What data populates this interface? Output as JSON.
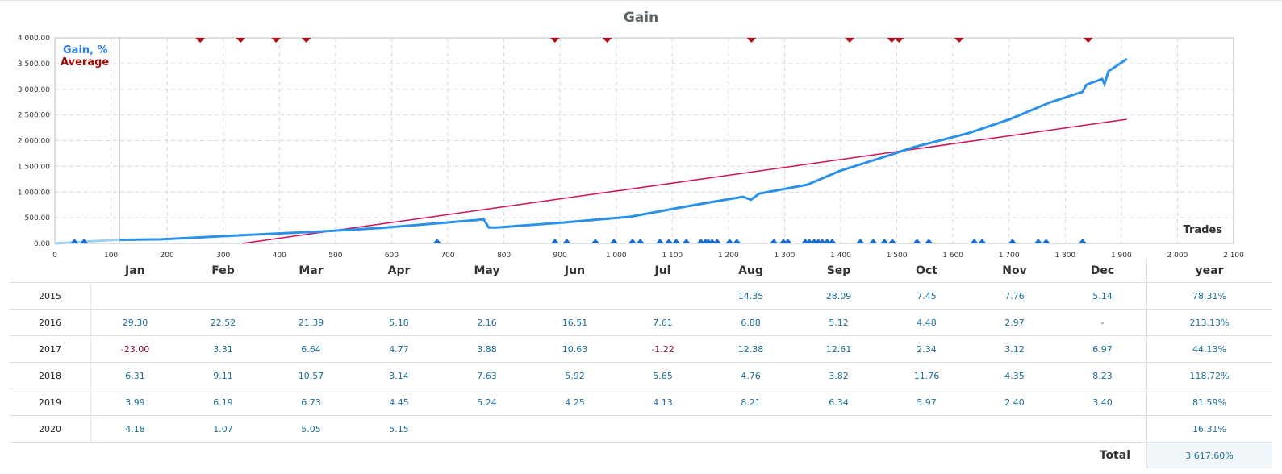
{
  "chart_data": {
    "type": "line",
    "title": "Gain",
    "xlabel": "Trades",
    "ylabel": "",
    "xlim": [
      0,
      2100
    ],
    "ylim": [
      0,
      4000
    ],
    "xticks": [
      "0",
      "100",
      "200",
      "300",
      "400",
      "500",
      "600",
      "700",
      "800",
      "900",
      "1 000",
      "1 100",
      "1 200",
      "1 300",
      "1 400",
      "1 500",
      "1 600",
      "1 700",
      "1 800",
      "1 900",
      "2 000",
      "2 100"
    ],
    "yticks": [
      "0.00",
      "500.00",
      "1 000.00",
      "1 500.00",
      "2 000.00",
      "2 500.00",
      "3 000.00",
      "3 500.00",
      "4 000.00"
    ],
    "grid": true,
    "legend_position": "top-left",
    "series": [
      {
        "name": "Gain, %",
        "color": "#2b90e8",
        "x": [
          0,
          60,
          115,
          120,
          190,
          334,
          478,
          580,
          751,
          764,
          773,
          787,
          910,
          1025,
          1125,
          1226,
          1240,
          1255,
          1341,
          1398,
          1485,
          1529,
          1629,
          1701,
          1773,
          1831,
          1838,
          1866,
          1870,
          1877,
          1910
        ],
        "y": [
          0,
          40,
          75,
          70,
          80,
          160,
          235,
          300,
          455,
          470,
          310,
          310,
          410,
          520,
          720,
          910,
          850,
          970,
          1145,
          1410,
          1710,
          1870,
          2150,
          2415,
          2745,
          2950,
          3090,
          3200,
          3100,
          3350,
          3590
        ]
      },
      {
        "name": "Average",
        "color": "#d0105a",
        "x": [
          334,
          1910
        ],
        "y": [
          0,
          2415
        ]
      }
    ],
    "sell_markers": [
      259,
      331,
      394,
      448,
      891,
      984,
      1241,
      1416,
      1491,
      1504,
      1611,
      1841
    ],
    "buy_markers": [
      35,
      52,
      681,
      891,
      912,
      963,
      996,
      1029,
      1043,
      1078,
      1094,
      1107,
      1125,
      1151,
      1159,
      1164,
      1171,
      1180,
      1202,
      1215,
      1281,
      1298,
      1306,
      1337,
      1344,
      1353,
      1360,
      1367,
      1376,
      1385,
      1435,
      1458,
      1478,
      1492,
      1536,
      1557,
      1638,
      1652,
      1706,
      1752,
      1766,
      1831
    ]
  },
  "table": {
    "headers": [
      "",
      "Jan",
      "Feb",
      "Mar",
      "Apr",
      "May",
      "Jun",
      "Jul",
      "Aug",
      "Sep",
      "Oct",
      "Nov",
      "Dec",
      "year"
    ],
    "rows": [
      [
        "2015",
        "",
        "",
        "",
        "",
        "",
        "",
        "",
        "14.35",
        "28.09",
        "7.45",
        "7.76",
        "5.14",
        "78.31%"
      ],
      [
        "2016",
        "29.30",
        "22.52",
        "21.39",
        "5.18",
        "2.16",
        "16.51",
        "7.61",
        "6.88",
        "5.12",
        "4.48",
        "2.97",
        "-",
        "213.13%"
      ],
      [
        "2017",
        "-23.00",
        "3.31",
        "6.64",
        "4.77",
        "3.88",
        "10.63",
        "-1.22",
        "12.38",
        "12.61",
        "2.34",
        "3.12",
        "6.97",
        "44.13%"
      ],
      [
        "2018",
        "6.31",
        "9.11",
        "10.57",
        "3.14",
        "7.63",
        "5.92",
        "5.65",
        "4.76",
        "3.82",
        "11.76",
        "4.35",
        "8.23",
        "118.72%"
      ],
      [
        "2019",
        "3.99",
        "6.19",
        "6.73",
        "4.45",
        "5.24",
        "4.25",
        "4.13",
        "8.21",
        "6.34",
        "5.97",
        "2.40",
        "3.40",
        "81.59%"
      ],
      [
        "2020",
        "4.18",
        "1.07",
        "5.05",
        "5.15",
        "",
        "",
        "",
        "",
        "",
        "",
        "",
        "",
        "16.31%"
      ]
    ],
    "total_label": "Total",
    "total_value": "3 617.60%"
  }
}
